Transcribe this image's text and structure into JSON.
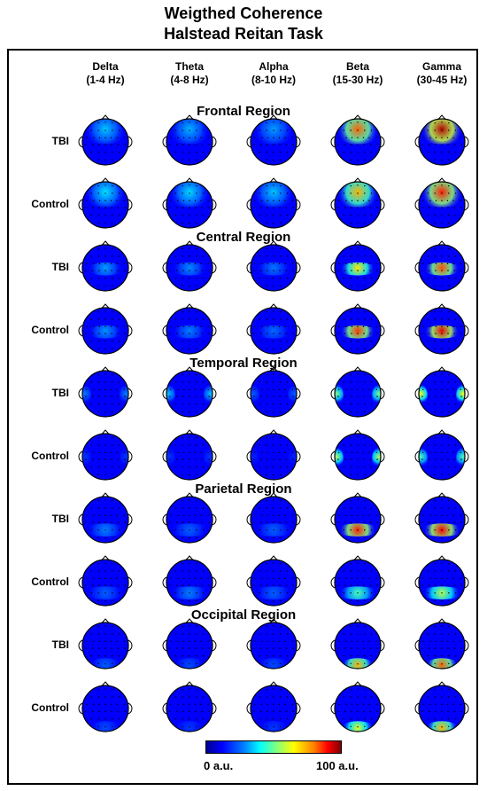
{
  "title": "Weigthed Coherence",
  "subtitle": "Halstead Reitan Task",
  "columns": [
    {
      "name": "Delta",
      "range": "(1-4 Hz)"
    },
    {
      "name": "Theta",
      "range": "(4-8 Hz)"
    },
    {
      "name": "Alpha",
      "range": "(8-10 Hz)"
    },
    {
      "name": "Beta",
      "range": "(15-30 Hz)"
    },
    {
      "name": "Gamma",
      "range": "(30-45 Hz)"
    }
  ],
  "regions": [
    {
      "name": "Frontal Region",
      "rows": [
        {
          "label": "TBI",
          "maps": [
            0.32,
            0.3,
            0.28,
            0.78,
            0.95
          ]
        },
        {
          "label": "Control",
          "maps": [
            0.35,
            0.34,
            0.32,
            0.7,
            0.85
          ]
        }
      ]
    },
    {
      "name": "Central Region",
      "rows": [
        {
          "label": "TBI",
          "maps": [
            0.28,
            0.26,
            0.24,
            0.65,
            0.8
          ]
        },
        {
          "label": "Control",
          "maps": [
            0.27,
            0.25,
            0.23,
            0.82,
            0.9
          ]
        }
      ]
    },
    {
      "name": "Temporal Region",
      "rows": [
        {
          "label": "TBI",
          "maps": [
            0.25,
            0.32,
            0.22,
            0.5,
            0.62
          ]
        },
        {
          "label": "Control",
          "maps": [
            0.18,
            0.18,
            0.16,
            0.55,
            0.45
          ]
        }
      ]
    },
    {
      "name": "Parietal Region",
      "rows": [
        {
          "label": "TBI",
          "maps": [
            0.25,
            0.22,
            0.22,
            0.85,
            0.88
          ]
        },
        {
          "label": "Control",
          "maps": [
            0.22,
            0.25,
            0.22,
            0.45,
            0.55
          ]
        }
      ]
    },
    {
      "name": "Occipital Region",
      "rows": [
        {
          "label": "TBI",
          "maps": [
            0.22,
            0.2,
            0.2,
            0.7,
            0.78
          ]
        },
        {
          "label": "Control",
          "maps": [
            0.2,
            0.18,
            0.18,
            0.6,
            0.7
          ]
        }
      ]
    }
  ],
  "colorbar": {
    "min_label": "0 a.u.",
    "max_label": "100 a.u.",
    "colormap": [
      "#00008f",
      "#0000ff",
      "#0080ff",
      "#00ffff",
      "#80ff80",
      "#ffff00",
      "#ff8000",
      "#ff0000",
      "#800000"
    ]
  }
}
